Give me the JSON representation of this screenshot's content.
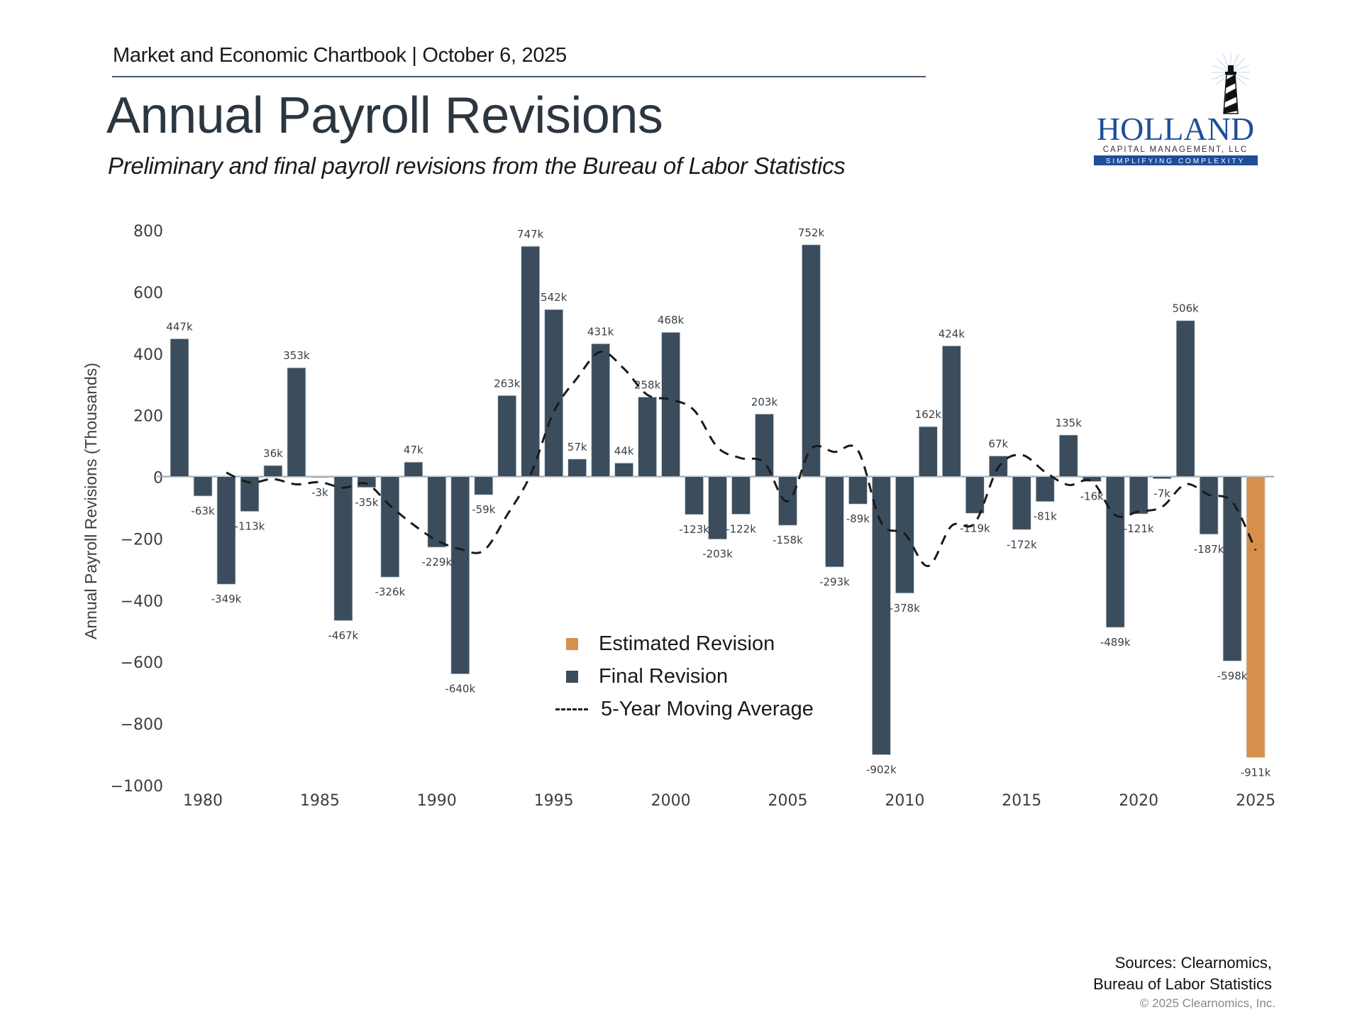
{
  "header": {
    "chartbook": "Market and Economic Chartbook | October 6, 2025",
    "title": "Annual Payroll Revisions",
    "subtitle": "Preliminary and final payroll revisions from the Bureau of Labor Statistics"
  },
  "logo": {
    "name": "HOLLAND",
    "line2": "CAPITAL MANAGEMENT, LLC",
    "tagline": "SIMPLIFYING COMPLEXITY",
    "icon": "lighthouse-icon",
    "brand_color": "#1f4e99"
  },
  "footer": {
    "sources_line1": "Sources: Clearnomics,",
    "sources_line2": "Bureau of Labor Statistics",
    "copyright": "© 2025 Clearnomics, Inc."
  },
  "colors": {
    "final": "#3b4d5c",
    "estimated": "#d6904c",
    "moving_average": "#1a1a1a",
    "axis": "#9aa3ab"
  },
  "chart_data": {
    "type": "bar",
    "title": "Annual Payroll Revisions",
    "xlabel": "",
    "ylabel": "Annual Payroll Revisions (Thousands)",
    "ylim": [
      -1000,
      800
    ],
    "yticks": [
      800,
      600,
      400,
      200,
      0,
      -200,
      -400,
      -600,
      -800,
      -1000
    ],
    "ytick_labels": [
      "800",
      "600",
      "400",
      "200",
      "0",
      "−200",
      "−400",
      "−600",
      "−800",
      "−1000"
    ],
    "xlim": [
      1978.5,
      2025.5
    ],
    "xticks": [
      1980,
      1985,
      1990,
      1995,
      2000,
      2005,
      2010,
      2015,
      2020,
      2025
    ],
    "grid": false,
    "legend_position": "bottom-center",
    "legend": [
      "Estimated Revision",
      "Final Revision",
      "5-Year Moving Average"
    ],
    "series": [
      {
        "name": "Final Revision",
        "x": [
          1979,
          1980,
          1981,
          1982,
          1983,
          1984,
          1985,
          1986,
          1987,
          1988,
          1989,
          1990,
          1991,
          1992,
          1993,
          1994,
          1995,
          1996,
          1997,
          1998,
          1999,
          2000,
          2001,
          2002,
          2003,
          2004,
          2005,
          2006,
          2007,
          2008,
          2009,
          2010,
          2011,
          2012,
          2013,
          2014,
          2015,
          2016,
          2017,
          2018,
          2019,
          2020,
          2021,
          2022,
          2023,
          2024
        ],
        "values": [
          447,
          -63,
          -349,
          -113,
          36,
          353,
          -3,
          -467,
          -35,
          -326,
          47,
          -229,
          -640,
          -59,
          263,
          747,
          542,
          57,
          431,
          44,
          258,
          468,
          -123,
          -203,
          -122,
          203,
          -158,
          752,
          -293,
          -89,
          -902,
          -378,
          162,
          424,
          -119,
          67,
          -172,
          -81,
          135,
          -16,
          -489,
          -121,
          -7,
          506,
          -187,
          -598
        ],
        "labels": [
          "447k",
          "-63k",
          "-349k",
          "-113k",
          "36k",
          "353k",
          "-3k",
          "-467k",
          "-35k",
          "-326k",
          "47k",
          "-229k",
          "-640k",
          "-59k",
          "263k",
          "747k",
          "542k",
          "57k",
          "431k",
          "44k",
          "258k",
          "468k",
          "-123k",
          "-203k",
          "-122k",
          "203k",
          "-158k",
          "752k",
          "-293k",
          "-89k",
          "-902k",
          "-378k",
          "162k",
          "424k",
          "-119k",
          "67k",
          "-172k",
          "-81k",
          "135k",
          "-16k",
          "-489k",
          "-121k",
          "-7k",
          "506k",
          "-187k",
          "-598k"
        ]
      },
      {
        "name": "Estimated Revision",
        "x": [
          2025
        ],
        "values": [
          -911
        ],
        "labels": [
          "-911k"
        ]
      },
      {
        "name": "5-Year Moving Average",
        "type": "line",
        "style": "dashed",
        "x": [
          1981,
          1982,
          1983,
          1984,
          1985,
          1986,
          1987,
          1988,
          1989,
          1990,
          1991,
          1992,
          1993,
          1994,
          1995,
          1996,
          1997,
          1998,
          1999,
          2000,
          2001,
          2002,
          2003,
          2004,
          2005,
          2006,
          2007,
          2008,
          2009,
          2010,
          2011,
          2012,
          2013,
          2014,
          2015,
          2016,
          2017,
          2018,
          2019,
          2020,
          2021,
          2022,
          2023,
          2024,
          2025
        ],
        "values": [
          13,
          -19,
          -8,
          -25,
          -18,
          -36,
          -23,
          -94,
          -156,
          -207,
          -235,
          -240,
          -125,
          5,
          210,
          320,
          405,
          350,
          265,
          250,
          215,
          95,
          60,
          45,
          -80,
          90,
          80,
          85,
          -150,
          -185,
          -290,
          -160,
          -150,
          30,
          70,
          15,
          -27,
          -15,
          -125,
          -113,
          -98,
          -25,
          -59,
          -82,
          -239
        ]
      }
    ]
  }
}
